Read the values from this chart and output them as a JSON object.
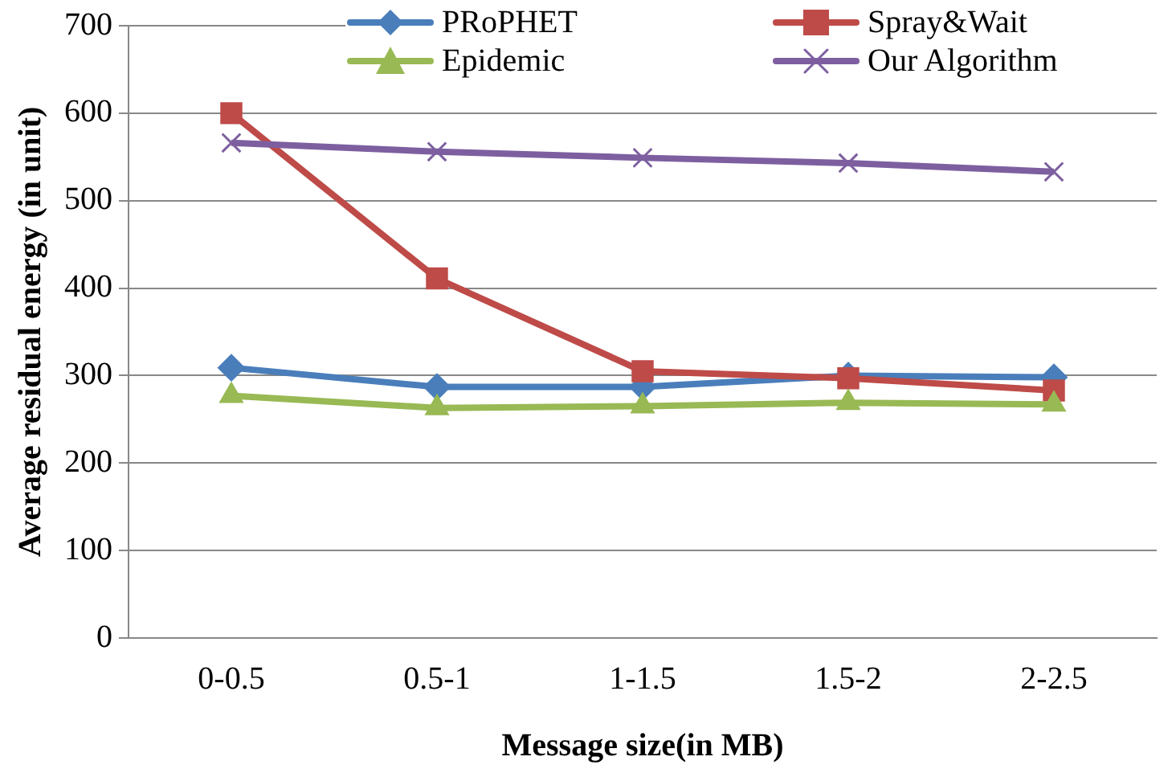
{
  "chart_data": {
    "type": "line",
    "xlabel": "Message size(in MB)",
    "ylabel": "Average residual energy (in unit)",
    "categories": [
      "0-0.5",
      "0.5-1",
      "1-1.5",
      "1.5-2",
      "2-2.5"
    ],
    "series": [
      {
        "name": "PRoPHET",
        "color": "#4a7ebb",
        "marker": "diamond",
        "values": [
          309,
          287,
          287,
          300,
          298
        ]
      },
      {
        "name": "Spray&Wait",
        "color": "#be4b48",
        "marker": "square",
        "values": [
          600,
          411,
          305,
          297,
          283
        ]
      },
      {
        "name": "Epidemic",
        "color": "#98b954",
        "marker": "triangle",
        "values": [
          277,
          263,
          265,
          269,
          267
        ]
      },
      {
        "name": "Our Algorithm",
        "color": "#7d5fa0",
        "marker": "cross",
        "values": [
          566,
          556,
          549,
          543,
          533
        ]
      }
    ],
    "ylim": [
      0,
      700
    ],
    "yticks": [
      0,
      100,
      200,
      300,
      400,
      500,
      600,
      700
    ],
    "grid": "y",
    "legend": "top"
  }
}
